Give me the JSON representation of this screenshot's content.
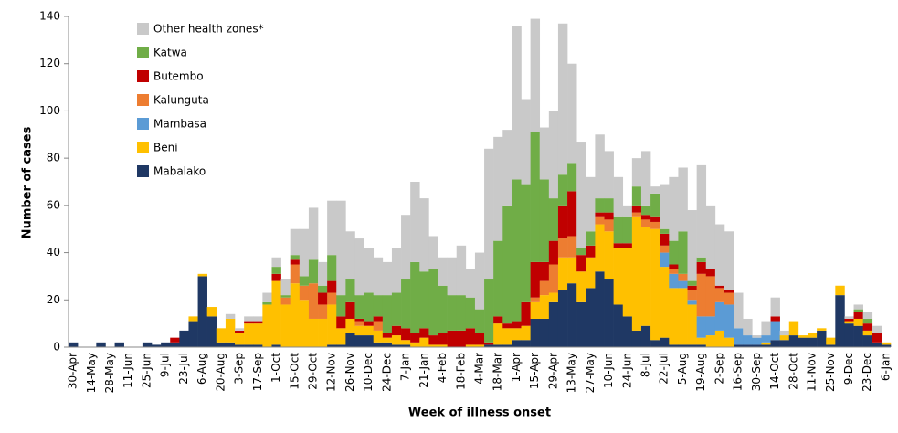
{
  "chart_data": {
    "type": "stacked_bar",
    "x_label": "Week of illness onset",
    "y_label": "Number of cases",
    "categories": [
      "30-Apr",
      null,
      "14-May",
      null,
      "28-May",
      null,
      "11-Jun",
      null,
      "25-Jun",
      null,
      "9-Jul",
      null,
      "23-Jul",
      null,
      "6-Aug",
      null,
      "20-Aug",
      null,
      "3-Sep",
      null,
      "17-Sep",
      null,
      "1-Oct",
      null,
      "15-Oct",
      null,
      "29-Oct",
      null,
      "12-Nov",
      null,
      "26-Nov",
      null,
      "10-Dec",
      null,
      "24-Dec",
      null,
      "7-Jan",
      null,
      "21-Jan",
      null,
      "4-Feb",
      null,
      "18-Feb",
      null,
      "4-Mar",
      null,
      "18-Mar",
      null,
      "1-Apr",
      null,
      "15-Apr",
      null,
      "29-Apr",
      null,
      "13-May",
      null,
      "27-May",
      null,
      "10-Jun",
      null,
      "24-Jun",
      null,
      "8-Jul",
      null,
      "22-Jul",
      null,
      "5-Aug",
      null,
      "19-Aug",
      null,
      "2-Sep",
      null,
      "16-Sep",
      null,
      "30-Sep",
      null,
      "14-Oct",
      null,
      "28-Oct",
      null,
      "11-Nov",
      null,
      "25-Nov",
      null,
      "9-Dec",
      null,
      "23-Dec",
      null,
      "6-Jan"
    ],
    "series": [
      {
        "name": "Mabalako",
        "color": "#1f3864",
        "values": [
          2,
          0,
          0,
          2,
          0,
          2,
          0,
          0,
          2,
          1,
          2,
          2,
          7,
          11,
          30,
          13,
          2,
          2,
          1,
          1,
          1,
          0,
          1,
          0,
          0,
          0,
          0,
          0,
          1,
          1,
          6,
          5,
          5,
          2,
          2,
          1,
          1,
          0,
          0,
          0,
          0,
          0,
          0,
          0,
          0,
          1,
          1,
          1,
          3,
          3,
          12,
          12,
          19,
          24,
          27,
          19,
          25,
          32,
          29,
          18,
          13,
          7,
          9,
          3,
          4,
          1,
          1,
          1,
          1,
          0,
          0,
          0,
          1,
          1,
          1,
          1,
          3,
          3,
          5,
          4,
          4,
          7,
          1,
          22,
          10,
          9,
          5,
          2,
          1
        ]
      },
      {
        "name": "Beni",
        "color": "#ffc000",
        "values": [
          0,
          0,
          0,
          0,
          0,
          0,
          0,
          0,
          0,
          0,
          0,
          0,
          0,
          2,
          1,
          4,
          6,
          10,
          5,
          9,
          9,
          18,
          27,
          18,
          27,
          20,
          12,
          12,
          17,
          7,
          6,
          4,
          4,
          5,
          2,
          4,
          2,
          2,
          4,
          1,
          1,
          0,
          0,
          1,
          1,
          0,
          9,
          7,
          5,
          6,
          7,
          10,
          4,
          14,
          11,
          13,
          13,
          20,
          20,
          24,
          29,
          48,
          42,
          47,
          30,
          24,
          24,
          17,
          3,
          5,
          7,
          4,
          0,
          0,
          0,
          1,
          0,
          2,
          6,
          1,
          2,
          1,
          3,
          4,
          1,
          3,
          2,
          0,
          1
        ]
      },
      {
        "name": "Mambasa",
        "color": "#5b9bd5",
        "values": [
          0,
          0,
          0,
          0,
          0,
          0,
          0,
          0,
          0,
          0,
          0,
          0,
          0,
          0,
          0,
          0,
          0,
          0,
          0,
          0,
          0,
          0,
          0,
          0,
          0,
          0,
          0,
          0,
          0,
          0,
          0,
          0,
          0,
          0,
          0,
          0,
          0,
          0,
          0,
          0,
          0,
          0,
          0,
          0,
          0,
          0,
          0,
          0,
          0,
          0,
          0,
          0,
          0,
          0,
          0,
          0,
          0,
          0,
          0,
          0,
          0,
          0,
          0,
          0,
          6,
          6,
          3,
          2,
          9,
          8,
          12,
          14,
          7,
          4,
          3,
          3,
          8,
          0,
          0,
          0,
          0,
          0,
          0,
          0,
          0,
          0,
          0,
          0,
          0
        ]
      },
      {
        "name": "Kalunguta",
        "color": "#ed7d31",
        "values": [
          0,
          0,
          0,
          0,
          0,
          0,
          0,
          0,
          0,
          0,
          0,
          0,
          0,
          0,
          0,
          0,
          0,
          0,
          0,
          0,
          0,
          0,
          0,
          3,
          8,
          6,
          15,
          6,
          5,
          0,
          0,
          2,
          0,
          4,
          0,
          0,
          0,
          0,
          0,
          0,
          0,
          0,
          0,
          0,
          0,
          0,
          0,
          0,
          0,
          0,
          2,
          6,
          12,
          8,
          9,
          0,
          0,
          3,
          5,
          0,
          0,
          2,
          3,
          3,
          3,
          2,
          3,
          4,
          18,
          17,
          6,
          5,
          0,
          0,
          0,
          0,
          0,
          0,
          0,
          0,
          0,
          0,
          0,
          0,
          0,
          0,
          0,
          0,
          0
        ]
      },
      {
        "name": "Butembo",
        "color": "#c00000",
        "values": [
          0,
          0,
          0,
          0,
          0,
          0,
          0,
          0,
          0,
          0,
          0,
          2,
          0,
          0,
          0,
          0,
          0,
          0,
          1,
          1,
          1,
          0,
          3,
          0,
          2,
          0,
          0,
          5,
          5,
          5,
          7,
          1,
          2,
          2,
          2,
          4,
          5,
          4,
          4,
          4,
          5,
          7,
          7,
          7,
          5,
          1,
          3,
          2,
          3,
          10,
          15,
          8,
          10,
          14,
          19,
          7,
          5,
          2,
          3,
          2,
          2,
          3,
          2,
          2,
          5,
          2,
          0,
          2,
          5,
          3,
          1,
          1,
          0,
          0,
          0,
          0,
          2,
          0,
          0,
          0,
          0,
          0,
          0,
          0,
          1,
          3,
          3,
          4,
          0
        ]
      },
      {
        "name": "Katwa",
        "color": "#70ad47",
        "values": [
          0,
          0,
          0,
          0,
          0,
          0,
          0,
          0,
          0,
          0,
          0,
          0,
          0,
          0,
          0,
          0,
          0,
          0,
          0,
          0,
          0,
          1,
          3,
          1,
          2,
          4,
          10,
          3,
          11,
          9,
          10,
          10,
          12,
          9,
          16,
          14,
          21,
          30,
          24,
          28,
          20,
          15,
          15,
          13,
          10,
          27,
          32,
          50,
          60,
          50,
          55,
          35,
          18,
          13,
          12,
          3,
          6,
          6,
          6,
          11,
          11,
          8,
          4,
          10,
          2,
          10,
          18,
          2,
          2,
          0,
          0,
          0,
          0,
          0,
          0,
          0,
          0,
          0,
          0,
          0,
          0,
          0,
          0,
          0,
          0,
          1,
          2,
          0,
          0
        ]
      },
      {
        "name": "Other health zones*",
        "color": "#c9c9c9",
        "values": [
          0,
          0,
          0,
          0,
          0,
          0,
          0,
          0,
          0,
          0,
          0,
          0,
          0,
          0,
          0,
          0,
          0,
          2,
          1,
          2,
          2,
          4,
          4,
          7,
          11,
          20,
          22,
          10,
          23,
          40,
          20,
          24,
          19,
          16,
          14,
          19,
          27,
          34,
          31,
          14,
          12,
          16,
          21,
          12,
          24,
          55,
          44,
          32,
          65,
          36,
          48,
          22,
          37,
          64,
          42,
          45,
          23,
          27,
          20,
          17,
          5,
          12,
          23,
          3,
          19,
          27,
          27,
          30,
          39,
          27,
          26,
          25,
          15,
          7,
          1,
          6,
          8,
          2,
          0,
          0,
          0,
          0,
          0,
          0,
          1,
          2,
          3,
          3,
          0
        ]
      }
    ],
    "ylim": [
      0,
      140
    ],
    "yticks": [
      0,
      20,
      40,
      60,
      80,
      100,
      120,
      140
    ],
    "legend": "top-left"
  }
}
